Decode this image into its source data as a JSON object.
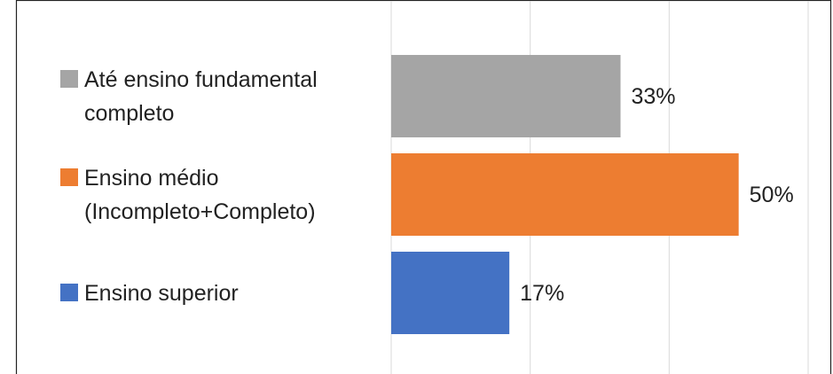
{
  "chart_data": {
    "type": "bar",
    "orientation": "horizontal",
    "series": [
      {
        "name": "Até ensino fundamental completo",
        "color": "#a5a5a5",
        "values": [
          33
        ],
        "value_labels": [
          "33%"
        ]
      },
      {
        "name": "Ensino médio (Incompleto+Completo)",
        "color": "#ed7d31",
        "values": [
          50
        ],
        "value_labels": [
          "50%"
        ]
      },
      {
        "name": "Ensino superior",
        "color": "#4472c4",
        "values": [
          17
        ],
        "value_labels": [
          "17%"
        ]
      }
    ],
    "xlim": [
      0,
      60
    ],
    "xticks": [
      0,
      20,
      40,
      60
    ],
    "grid": true,
    "legend": "left"
  }
}
